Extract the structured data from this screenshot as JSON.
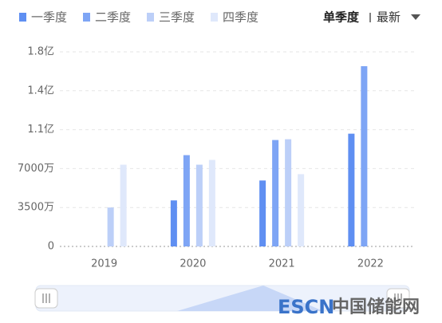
{
  "chart_data": {
    "type": "bar",
    "categories": [
      "2019",
      "2020",
      "2021",
      "2022"
    ],
    "series": [
      {
        "name": "一季度",
        "color": "#5f8ff2",
        "values": [
          null,
          4140,
          5930,
          10140
        ]
      },
      {
        "name": "二季度",
        "color": "#7ea5f5",
        "values": [
          null,
          8210,
          9570,
          16210
        ]
      },
      {
        "name": "三季度",
        "color": "#bccff8",
        "values": [
          3500,
          7350,
          9640,
          null
        ]
      },
      {
        "name": "四季度",
        "color": "#dfe8fb",
        "values": [
          7350,
          7780,
          6500,
          null
        ]
      }
    ],
    "ylim": [
      0,
      17500
    ],
    "yticks": [
      0,
      {
        "value": 3500,
        "label": "3500万"
      },
      {
        "value": 7000,
        "label": "7000万"
      },
      {
        "value": 10500,
        "label": "1.1亿"
      },
      {
        "value": 14000,
        "label": "1.4亿"
      },
      {
        "value": 17500,
        "label": "1.8亿"
      }
    ],
    "grid": true,
    "controls": {
      "mode": "单季度",
      "sort": "最新"
    },
    "watermark": [
      "ESCN",
      "中国储能网"
    ]
  }
}
